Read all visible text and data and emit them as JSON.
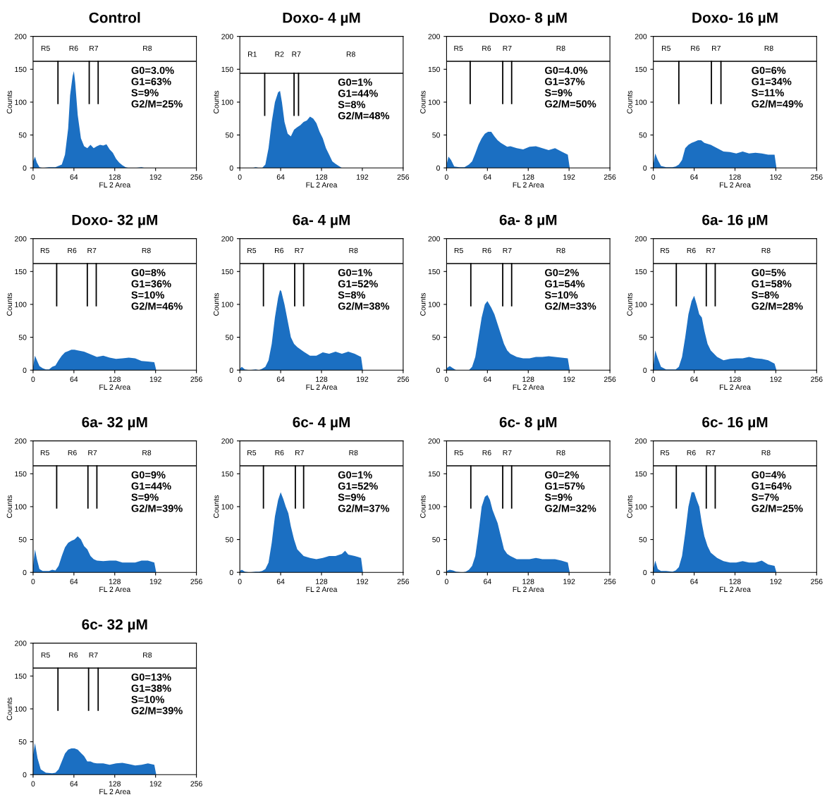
{
  "chart_data": [
    {
      "type": "area",
      "title": "Control",
      "xlabel": "FL 2 Area",
      "ylabel": "Counts",
      "color": "#1b6fc2",
      "xlim": [
        0,
        256
      ],
      "ylim": [
        0,
        200
      ],
      "xticks": [
        0,
        64,
        128,
        192,
        256
      ],
      "yticks": [
        0,
        50,
        100,
        150,
        200
      ],
      "x": [
        0,
        3,
        6,
        10,
        15,
        25,
        35,
        45,
        50,
        55,
        58,
        62,
        64,
        66,
        70,
        75,
        80,
        85,
        90,
        95,
        100,
        105,
        110,
        115,
        120,
        125,
        130,
        135,
        140,
        145,
        150,
        160,
        170,
        175,
        200
      ],
      "values": [
        10,
        17,
        8,
        1,
        0,
        1,
        1,
        5,
        20,
        60,
        110,
        140,
        147,
        130,
        80,
        45,
        33,
        30,
        35,
        30,
        33,
        35,
        34,
        36,
        28,
        23,
        14,
        8,
        4,
        1,
        0,
        0,
        1,
        0,
        0
      ],
      "ref_lines": [
        {
          "axis": "y",
          "value": 162
        },
        {
          "axis": "x",
          "value": 39
        },
        {
          "axis": "x",
          "value": 88
        },
        {
          "axis": "x",
          "value": 102
        }
      ],
      "annotations": [
        "R5",
        "R6",
        "R7",
        "R8",
        "G0=3.0%",
        "G1=63%",
        "S=9%",
        "G2/M=25%"
      ]
    },
    {
      "type": "area",
      "title": "Doxo- 4 µM",
      "xlabel": "FL 2 Area",
      "ylabel": "Counts",
      "color": "#1b6fc2",
      "xlim": [
        0,
        256
      ],
      "ylim": [
        0,
        200
      ],
      "xticks": [
        0,
        64,
        128,
        192,
        256
      ],
      "yticks": [
        0,
        50,
        100,
        150,
        200
      ],
      "x": [
        0,
        20,
        25,
        30,
        35,
        40,
        45,
        50,
        55,
        60,
        63,
        66,
        70,
        75,
        80,
        85,
        90,
        95,
        100,
        105,
        110,
        115,
        120,
        125,
        130,
        135,
        140,
        145,
        150,
        155,
        160,
        192,
        256
      ],
      "values": [
        0,
        0,
        1,
        0,
        0,
        5,
        30,
        70,
        100,
        115,
        117,
        100,
        70,
        52,
        48,
        58,
        62,
        65,
        70,
        72,
        78,
        75,
        68,
        55,
        45,
        30,
        20,
        10,
        6,
        3,
        0,
        0,
        0
      ],
      "ref_lines": [
        {
          "axis": "y",
          "value": 144
        },
        {
          "axis": "x",
          "value": 39
        },
        {
          "axis": "x",
          "value": 85
        },
        {
          "axis": "x",
          "value": 92
        }
      ],
      "annotations": [
        "R1",
        "R2",
        "R7",
        "R8",
        "G0=1%",
        "G1=44%",
        "S=8%",
        "G2/M=48%"
      ]
    },
    {
      "type": "area",
      "title": "Doxo- 8 µM",
      "xlabel": "FL 2 Area",
      "ylabel": "Counts",
      "color": "#1b6fc2",
      "xlim": [
        0,
        256
      ],
      "ylim": [
        0,
        200
      ],
      "xticks": [
        0,
        64,
        128,
        192,
        256
      ],
      "yticks": [
        0,
        50,
        100,
        150,
        200
      ],
      "x": [
        0,
        3,
        7,
        12,
        20,
        28,
        35,
        40,
        45,
        50,
        55,
        60,
        65,
        70,
        75,
        80,
        85,
        90,
        95,
        100,
        110,
        120,
        130,
        140,
        150,
        160,
        170,
        180,
        190,
        193
      ],
      "values": [
        5,
        17,
        12,
        2,
        1,
        1,
        5,
        10,
        22,
        35,
        45,
        52,
        55,
        55,
        48,
        42,
        38,
        35,
        32,
        33,
        30,
        28,
        32,
        33,
        30,
        27,
        30,
        25,
        20,
        0
      ],
      "ref_lines": [
        {
          "axis": "y",
          "value": 162
        },
        {
          "axis": "x",
          "value": 37
        },
        {
          "axis": "x",
          "value": 88
        },
        {
          "axis": "x",
          "value": 102
        }
      ],
      "annotations": [
        "R5",
        "R6",
        "R7",
        "R8",
        "G0=4.0%",
        "G1=37%",
        "S=9%",
        "G2/M=50%"
      ]
    },
    {
      "type": "area",
      "title": "Doxo- 16 µM",
      "xlabel": "FL 2 Area",
      "ylabel": "Counts",
      "color": "#1b6fc2",
      "xlim": [
        0,
        256
      ],
      "ylim": [
        0,
        200
      ],
      "xticks": [
        0,
        64,
        128,
        192,
        256
      ],
      "yticks": [
        0,
        50,
        100,
        150,
        200
      ],
      "x": [
        0,
        3,
        7,
        12,
        20,
        30,
        35,
        40,
        45,
        50,
        55,
        60,
        65,
        70,
        75,
        80,
        90,
        100,
        110,
        120,
        130,
        140,
        150,
        160,
        170,
        180,
        190,
        193
      ],
      "values": [
        5,
        22,
        12,
        3,
        1,
        1,
        2,
        5,
        12,
        30,
        35,
        38,
        40,
        42,
        42,
        38,
        35,
        30,
        25,
        24,
        22,
        25,
        22,
        23,
        22,
        20,
        20,
        0
      ],
      "ref_lines": [
        {
          "axis": "y",
          "value": 162
        },
        {
          "axis": "x",
          "value": 40
        },
        {
          "axis": "x",
          "value": 91
        },
        {
          "axis": "x",
          "value": 106
        }
      ],
      "annotations": [
        "R5",
        "R6",
        "R7",
        "R8",
        "G0=6%",
        "G1=34%",
        "S=11%",
        "G2/M=49%"
      ]
    },
    {
      "type": "area",
      "title": "Doxo- 32 µM",
      "xlabel": "FL 2 Area",
      "ylabel": "Counts",
      "color": "#1b6fc2",
      "xlim": [
        0,
        256
      ],
      "ylim": [
        0,
        200
      ],
      "xticks": [
        0,
        64,
        128,
        192,
        256
      ],
      "yticks": [
        0,
        50,
        100,
        150,
        200
      ],
      "x": [
        0,
        3,
        6,
        10,
        15,
        20,
        25,
        30,
        35,
        40,
        45,
        50,
        55,
        60,
        65,
        70,
        80,
        90,
        100,
        110,
        120,
        130,
        140,
        150,
        160,
        170,
        180,
        190,
        193
      ],
      "values": [
        5,
        22,
        15,
        6,
        3,
        1,
        1,
        5,
        7,
        15,
        22,
        27,
        29,
        31,
        31,
        30,
        28,
        24,
        20,
        22,
        19,
        17,
        18,
        19,
        18,
        14,
        13,
        12,
        0
      ],
      "ref_lines": [
        {
          "axis": "y",
          "value": 162
        },
        {
          "axis": "x",
          "value": 37
        },
        {
          "axis": "x",
          "value": 85
        },
        {
          "axis": "x",
          "value": 99
        }
      ],
      "annotations": [
        "R5",
        "R6",
        "R7",
        "R8",
        "G0=8%",
        "G1=36%",
        "S=10%",
        "G2/M=46%"
      ]
    },
    {
      "type": "area",
      "title": "6a- 4 µM",
      "xlabel": "FL 2 Area",
      "ylabel": "Counts",
      "color": "#1b6fc2",
      "xlim": [
        0,
        256
      ],
      "ylim": [
        0,
        200
      ],
      "xticks": [
        0,
        64,
        128,
        192,
        256
      ],
      "yticks": [
        0,
        50,
        100,
        150,
        200
      ],
      "x": [
        0,
        3,
        8,
        15,
        25,
        30,
        35,
        40,
        45,
        50,
        55,
        60,
        63,
        65,
        70,
        75,
        80,
        85,
        90,
        100,
        110,
        120,
        130,
        140,
        150,
        160,
        170,
        180,
        190,
        193
      ],
      "values": [
        2,
        5,
        1,
        0,
        1,
        0,
        2,
        5,
        15,
        40,
        80,
        110,
        122,
        120,
        100,
        75,
        50,
        40,
        35,
        28,
        22,
        22,
        27,
        25,
        28,
        25,
        28,
        25,
        20,
        0
      ],
      "ref_lines": [
        {
          "axis": "y",
          "value": 162
        },
        {
          "axis": "x",
          "value": 37
        },
        {
          "axis": "x",
          "value": 86
        },
        {
          "axis": "x",
          "value": 100
        }
      ],
      "annotations": [
        "R5",
        "R6",
        "R7",
        "R8",
        "G0=1%",
        "G1=52%",
        "S=8%",
        "G2/M=38%"
      ]
    },
    {
      "type": "area",
      "title": "6a- 8 µM",
      "xlabel": "FL 2 Area",
      "ylabel": "Counts",
      "color": "#1b6fc2",
      "xlim": [
        0,
        256
      ],
      "ylim": [
        0,
        200
      ],
      "xticks": [
        0,
        64,
        128,
        192,
        256
      ],
      "yticks": [
        0,
        50,
        100,
        150,
        200
      ],
      "x": [
        0,
        5,
        10,
        15,
        30,
        35,
        40,
        45,
        50,
        55,
        60,
        64,
        70,
        75,
        80,
        85,
        90,
        95,
        100,
        110,
        120,
        130,
        140,
        150,
        160,
        170,
        180,
        190,
        193
      ],
      "values": [
        3,
        6,
        3,
        0,
        0,
        0,
        5,
        20,
        50,
        80,
        100,
        105,
        95,
        85,
        70,
        55,
        40,
        30,
        25,
        20,
        18,
        18,
        20,
        20,
        21,
        20,
        19,
        18,
        0
      ],
      "ref_lines": [
        {
          "axis": "y",
          "value": 162
        },
        {
          "axis": "x",
          "value": 38
        },
        {
          "axis": "x",
          "value": 88
        },
        {
          "axis": "x",
          "value": 102
        }
      ],
      "annotations": [
        "R5",
        "R6",
        "R7",
        "R8",
        "G0=2%",
        "G1=54%",
        "S=10%",
        "G2/M=33%"
      ]
    },
    {
      "type": "area",
      "title": "6a- 16 µM",
      "xlabel": "FL 2 Area",
      "ylabel": "Counts",
      "color": "#1b6fc2",
      "xlim": [
        0,
        256
      ],
      "ylim": [
        0,
        200
      ],
      "xticks": [
        0,
        64,
        128,
        192,
        256
      ],
      "yticks": [
        0,
        50,
        100,
        150,
        200
      ],
      "x": [
        0,
        3,
        7,
        12,
        20,
        30,
        35,
        40,
        45,
        50,
        55,
        60,
        64,
        68,
        72,
        76,
        80,
        85,
        90,
        100,
        110,
        120,
        130,
        140,
        150,
        160,
        170,
        180,
        190,
        193
      ],
      "values": [
        5,
        30,
        18,
        5,
        1,
        1,
        1,
        5,
        20,
        50,
        85,
        105,
        113,
        100,
        85,
        80,
        60,
        40,
        30,
        20,
        15,
        17,
        18,
        18,
        20,
        18,
        17,
        15,
        10,
        0
      ],
      "ref_lines": [
        {
          "axis": "y",
          "value": 162
        },
        {
          "axis": "x",
          "value": 36
        },
        {
          "axis": "x",
          "value": 83
        },
        {
          "axis": "x",
          "value": 97
        }
      ],
      "annotations": [
        "R5",
        "R6",
        "R7",
        "R8",
        "G0=5%",
        "G1=58%",
        "S=8%",
        "G2/M=28%"
      ]
    },
    {
      "type": "area",
      "title": "6a- 32 µM",
      "xlabel": "FL 2 Area",
      "ylabel": "Counts",
      "color": "#1b6fc2",
      "xlim": [
        0,
        256
      ],
      "ylim": [
        0,
        200
      ],
      "xticks": [
        0,
        64,
        128,
        192,
        256
      ],
      "yticks": [
        0,
        50,
        100,
        150,
        200
      ],
      "x": [
        0,
        3,
        6,
        10,
        15,
        25,
        30,
        35,
        40,
        45,
        50,
        55,
        60,
        65,
        70,
        75,
        80,
        85,
        90,
        95,
        100,
        110,
        120,
        130,
        140,
        150,
        160,
        170,
        180,
        190,
        193
      ],
      "values": [
        10,
        35,
        20,
        5,
        2,
        2,
        4,
        3,
        10,
        25,
        38,
        45,
        48,
        50,
        55,
        50,
        40,
        35,
        25,
        20,
        18,
        17,
        18,
        18,
        15,
        15,
        15,
        18,
        18,
        15,
        0
      ],
      "ref_lines": [
        {
          "axis": "y",
          "value": 162
        },
        {
          "axis": "x",
          "value": 37
        },
        {
          "axis": "x",
          "value": 86
        },
        {
          "axis": "x",
          "value": 100
        }
      ],
      "annotations": [
        "R5",
        "R6",
        "R7",
        "R8",
        "G0=9%",
        "G1=44%",
        "S=9%",
        "G2/M=39%"
      ]
    },
    {
      "type": "area",
      "title": "6c- 4 µM",
      "xlabel": "FL 2 Area",
      "ylabel": "Counts",
      "color": "#1b6fc2",
      "xlim": [
        0,
        256
      ],
      "ylim": [
        0,
        200
      ],
      "xticks": [
        0,
        64,
        128,
        192,
        256
      ],
      "yticks": [
        0,
        50,
        100,
        150,
        200
      ],
      "x": [
        0,
        3,
        8,
        15,
        25,
        30,
        35,
        40,
        45,
        50,
        55,
        60,
        64,
        68,
        72,
        76,
        80,
        85,
        90,
        100,
        110,
        120,
        130,
        140,
        150,
        160,
        165,
        170,
        180,
        190,
        193
      ],
      "values": [
        2,
        4,
        1,
        0,
        1,
        1,
        2,
        5,
        15,
        45,
        85,
        110,
        122,
        112,
        100,
        90,
        70,
        50,
        35,
        25,
        22,
        20,
        22,
        25,
        25,
        28,
        33,
        27,
        25,
        22,
        0
      ],
      "ref_lines": [
        {
          "axis": "y",
          "value": 162
        },
        {
          "axis": "x",
          "value": 37
        },
        {
          "axis": "x",
          "value": 87
        },
        {
          "axis": "x",
          "value": 100
        }
      ],
      "annotations": [
        "R5",
        "R6",
        "R7",
        "R8",
        "G0=1%",
        "G1=52%",
        "S=9%",
        "G2/M=37%"
      ]
    },
    {
      "type": "area",
      "title": "6c- 8 µM",
      "xlabel": "FL 2 Area",
      "ylabel": "Counts",
      "color": "#1b6fc2",
      "xlim": [
        0,
        256
      ],
      "ylim": [
        0,
        200
      ],
      "xticks": [
        0,
        64,
        128,
        192,
        256
      ],
      "yticks": [
        0,
        50,
        100,
        150,
        200
      ],
      "x": [
        0,
        5,
        10,
        15,
        25,
        30,
        35,
        40,
        45,
        50,
        55,
        60,
        64,
        68,
        72,
        76,
        80,
        85,
        90,
        95,
        100,
        110,
        120,
        130,
        140,
        150,
        160,
        170,
        180,
        190,
        193
      ],
      "values": [
        2,
        4,
        3,
        1,
        0,
        1,
        4,
        10,
        25,
        60,
        100,
        115,
        118,
        110,
        95,
        85,
        75,
        55,
        35,
        28,
        25,
        20,
        20,
        20,
        22,
        20,
        20,
        20,
        18,
        15,
        0
      ],
      "ref_lines": [
        {
          "axis": "y",
          "value": 162
        },
        {
          "axis": "x",
          "value": 38
        },
        {
          "axis": "x",
          "value": 88
        },
        {
          "axis": "x",
          "value": 102
        }
      ],
      "annotations": [
        "R5",
        "R6",
        "R7",
        "R8",
        "G0=2%",
        "G1=57%",
        "S=9%",
        "G2/M=32%"
      ]
    },
    {
      "type": "area",
      "title": "6c- 16 µM",
      "xlabel": "FL 2 Area",
      "ylabel": "Counts",
      "color": "#1b6fc2",
      "xlim": [
        0,
        256
      ],
      "ylim": [
        0,
        200
      ],
      "xticks": [
        0,
        64,
        128,
        192,
        256
      ],
      "yticks": [
        0,
        50,
        100,
        150,
        200
      ],
      "x": [
        0,
        3,
        7,
        12,
        20,
        30,
        35,
        40,
        45,
        50,
        55,
        60,
        64,
        68,
        72,
        76,
        80,
        85,
        90,
        100,
        110,
        120,
        130,
        140,
        150,
        160,
        170,
        180,
        190,
        193
      ],
      "values": [
        5,
        18,
        5,
        2,
        2,
        1,
        3,
        8,
        25,
        60,
        100,
        122,
        122,
        110,
        100,
        75,
        55,
        40,
        30,
        22,
        17,
        15,
        15,
        17,
        15,
        15,
        18,
        12,
        10,
        0
      ],
      "ref_lines": [
        {
          "axis": "y",
          "value": 162
        },
        {
          "axis": "x",
          "value": 36
        },
        {
          "axis": "x",
          "value": 83
        },
        {
          "axis": "x",
          "value": 97
        }
      ],
      "annotations": [
        "R5",
        "R6",
        "R7",
        "R8",
        "G0=4%",
        "G1=64%",
        "S=7%",
        "G2/M=25%"
      ]
    },
    {
      "type": "area",
      "title": "6c- 32 µM",
      "xlabel": "FL 2 Area",
      "ylabel": "Counts",
      "color": "#1b6fc2",
      "xlim": [
        0,
        256
      ],
      "ylim": [
        0,
        200
      ],
      "xticks": [
        0,
        64,
        128,
        192,
        256
      ],
      "yticks": [
        0,
        50,
        100,
        150,
        200
      ],
      "x": [
        0,
        3,
        7,
        12,
        20,
        30,
        35,
        40,
        45,
        50,
        55,
        60,
        65,
        70,
        75,
        80,
        85,
        90,
        95,
        100,
        110,
        120,
        130,
        140,
        150,
        160,
        170,
        180,
        190,
        193
      ],
      "values": [
        30,
        48,
        25,
        8,
        3,
        2,
        3,
        8,
        20,
        32,
        38,
        40,
        40,
        38,
        33,
        28,
        20,
        20,
        18,
        17,
        17,
        15,
        17,
        18,
        16,
        14,
        15,
        17,
        15,
        0
      ],
      "ref_lines": [
        {
          "axis": "y",
          "value": 162
        },
        {
          "axis": "x",
          "value": 39
        },
        {
          "axis": "x",
          "value": 87
        },
        {
          "axis": "x",
          "value": 102
        }
      ],
      "annotations": [
        "R5",
        "R6",
        "R7",
        "R8",
        "G0=13%",
        "G1=38%",
        "S=10%",
        "G2/M=39%"
      ]
    }
  ]
}
